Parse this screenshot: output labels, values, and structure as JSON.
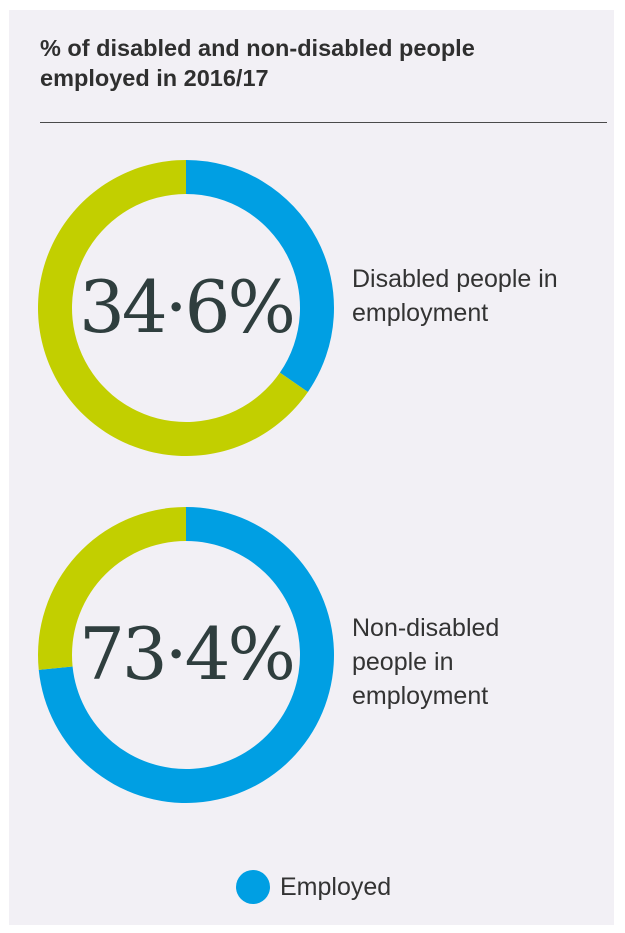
{
  "title": "% of disabled and non-disabled people employed in 2016/17",
  "colors": {
    "employed": "#009fe3",
    "remainder": "#c2cf00",
    "panel": "#f2f0f5"
  },
  "legend": {
    "employed_label": "Employed"
  },
  "chart_data": [
    {
      "type": "pie",
      "variant": "donut",
      "center_label": "34·6%",
      "label": "Disabled people in\nemployment",
      "slices": [
        {
          "name": "Employed",
          "value": 34.6,
          "color": "#009fe3"
        },
        {
          "value": 65.4,
          "color": "#c2cf00"
        }
      ]
    },
    {
      "type": "pie",
      "variant": "donut",
      "center_label": "73·4%",
      "label": "Non-disabled\npeople in\nemployment",
      "slices": [
        {
          "name": "Employed",
          "value": 73.4,
          "color": "#009fe3"
        },
        {
          "value": 26.6,
          "color": "#c2cf00"
        }
      ]
    }
  ]
}
